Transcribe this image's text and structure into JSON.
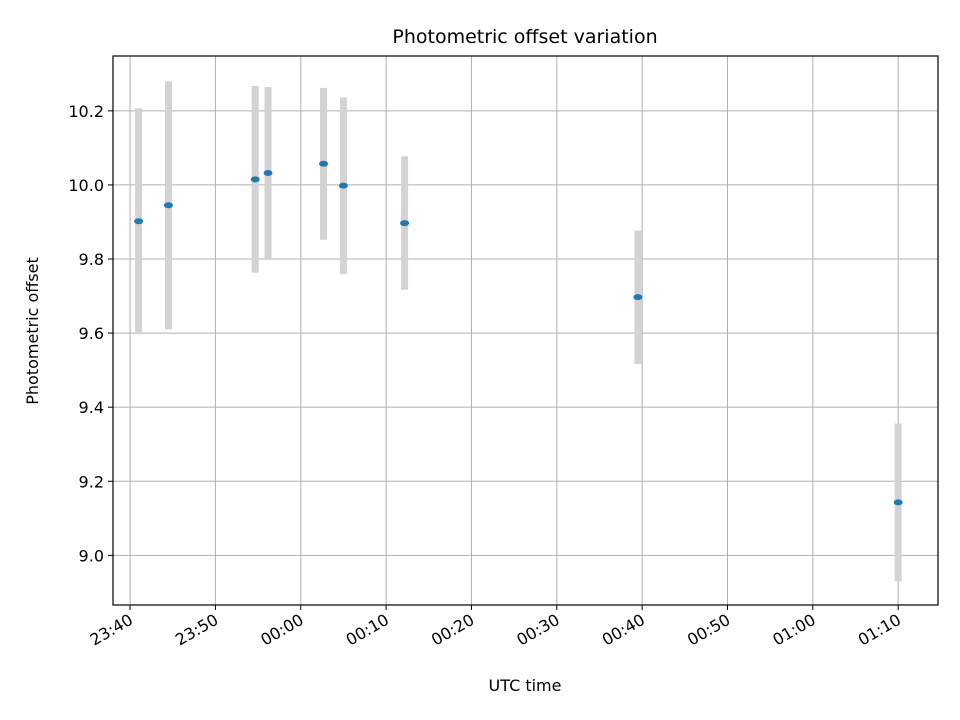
{
  "chart_data": {
    "type": "scatter",
    "title": "Photometric offset variation",
    "xlabel": "UTC time",
    "ylabel": "Photometric offset",
    "xlim": [
      "23:38:00",
      "01:14:40"
    ],
    "ylim": [
      8.866,
      10.348
    ],
    "x_ticks": [
      "23:40",
      "23:50",
      "00:00",
      "00:10",
      "00:20",
      "00:30",
      "00:40",
      "00:50",
      "01:00",
      "01:10"
    ],
    "y_ticks": [
      9.0,
      9.2,
      9.4,
      9.6,
      9.8,
      10.0,
      10.2
    ],
    "y_tick_labels": [
      "9.0",
      "9.2",
      "9.4",
      "9.6",
      "9.8",
      "10.0",
      "10.2"
    ],
    "grid": true,
    "marker_color": "#1f77b4",
    "errorbar_color": "#d3d3d3",
    "points": [
      {
        "time": "23:41:00",
        "value": 9.902,
        "error": 0.305
      },
      {
        "time": "23:44:30",
        "value": 9.945,
        "error": 0.335
      },
      {
        "time": "23:54:40",
        "value": 10.015,
        "error": 0.252
      },
      {
        "time": "23:56:10",
        "value": 10.032,
        "error": 0.232
      },
      {
        "time": "00:02:40",
        "value": 10.057,
        "error": 0.205
      },
      {
        "time": "00:05:00",
        "value": 9.998,
        "error": 0.238
      },
      {
        "time": "00:12:10",
        "value": 9.897,
        "error": 0.18
      },
      {
        "time": "00:39:30",
        "value": 9.697,
        "error": 0.18
      },
      {
        "time": "01:10:00",
        "value": 9.143,
        "error": 0.213
      }
    ]
  }
}
